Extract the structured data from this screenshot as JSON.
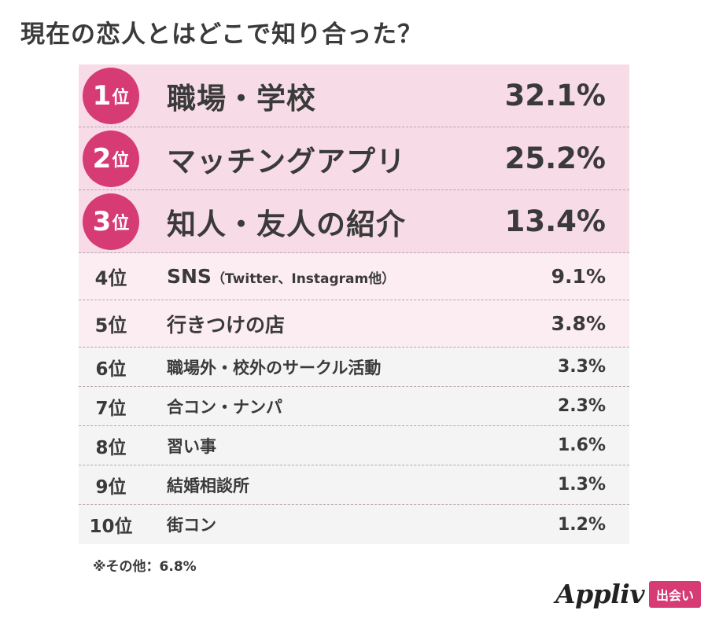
{
  "title": "現在の恋人とはどこで知り合った？",
  "chart_data": {
    "type": "table",
    "title": "現在の恋人とはどこで知り合った？",
    "rank_unit": "位",
    "rows": [
      {
        "rank": "1",
        "label": "職場・学校",
        "sub": "",
        "value": "32.1%"
      },
      {
        "rank": "2",
        "label": "マッチングアプリ",
        "sub": "",
        "value": "25.2%"
      },
      {
        "rank": "3",
        "label": "知人・友人の紹介",
        "sub": "",
        "value": "13.4%"
      },
      {
        "rank": "4",
        "label": "SNS",
        "sub": "（Twitter、Instagram他）",
        "value": "9.1%"
      },
      {
        "rank": "5",
        "label": "行きつけの店",
        "sub": "",
        "value": "3.8%"
      },
      {
        "rank": "6",
        "label": "職場外・校外のサークル活動",
        "sub": "",
        "value": "3.3%"
      },
      {
        "rank": "7",
        "label": "合コン・ナンパ",
        "sub": "",
        "value": "2.3%"
      },
      {
        "rank": "8",
        "label": "習い事",
        "sub": "",
        "value": "1.6%"
      },
      {
        "rank": "9",
        "label": "結婚相談所",
        "sub": "",
        "value": "1.3%"
      },
      {
        "rank": "10",
        "label": "街コン",
        "sub": "",
        "value": "1.2%"
      }
    ],
    "note": "※その他：6.8%",
    "colors": {
      "badge": "#d63b73",
      "top_row_bg": "#f7dbe6",
      "mid_row_bg": "#fcedf2",
      "low_row_bg": "#f4f4f4"
    }
  },
  "brand": {
    "logo": "Appliv",
    "tag": "出会い"
  }
}
